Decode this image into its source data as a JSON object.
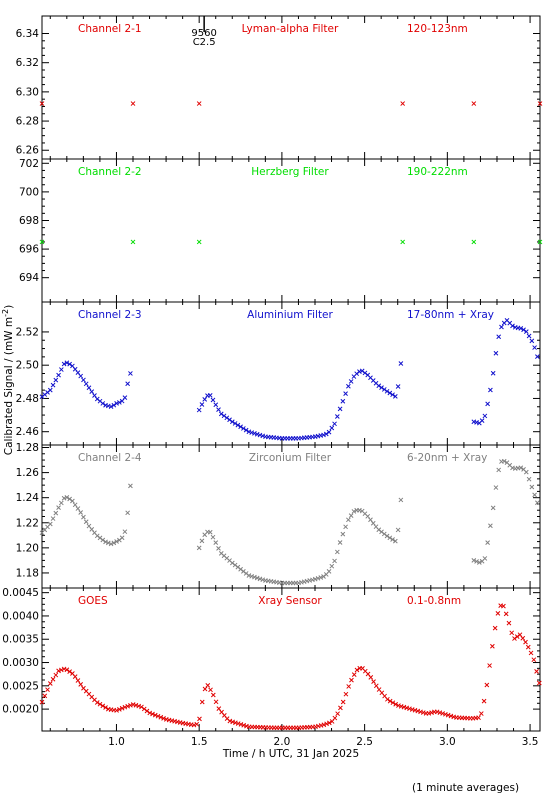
{
  "figure": {
    "ylabel": "Calibrated Signal / (mW m",
    "ylabel_sup": "-2",
    "ylabel_end": ")",
    "xlabel": "Time / h UTC, 31 Jan 2025",
    "footnote": "(1 minute averages)",
    "flare_marker": {
      "time": 1.53,
      "label_top": "9560",
      "label_bottom": "C2.5"
    },
    "x_ticks": [
      "1.0",
      "1.5",
      "2.0",
      "2.5",
      "3.0",
      "3.5"
    ]
  },
  "chart_data": [
    {
      "type": "scatter",
      "channel": "Channel 2-1",
      "filter": "Lyman-alpha Filter",
      "band": "120-123nm",
      "color": "#e00000",
      "xlim": [
        0.55,
        3.56
      ],
      "ylim": [
        6.254,
        6.352
      ],
      "yticks": [
        "6.26",
        "6.28",
        "6.30",
        "6.32",
        "6.34"
      ],
      "points": [
        [
          0.55,
          6.292
        ],
        [
          1.1,
          6.292
        ],
        [
          1.5,
          6.292
        ],
        [
          2.73,
          6.292
        ],
        [
          3.16,
          6.292
        ],
        [
          3.56,
          6.292
        ]
      ],
      "gaps": [
        [
          1.1,
          1.5
        ],
        [
          2.73,
          3.16
        ]
      ]
    },
    {
      "type": "scatter",
      "channel": "Channel 2-2",
      "filter": "Herzberg Filter",
      "band": "190-222nm",
      "color": "#00dd00",
      "xlim": [
        0.55,
        3.56
      ],
      "ylim": [
        692.3,
        702.3
      ],
      "yticks": [
        "694",
        "696",
        "698",
        "700",
        "702"
      ],
      "points": [
        [
          0.55,
          696.5
        ],
        [
          1.1,
          696.5
        ],
        [
          1.5,
          696.5
        ],
        [
          2.73,
          696.5
        ],
        [
          3.16,
          696.5
        ],
        [
          3.56,
          696.5
        ]
      ],
      "gaps": [
        [
          1.1,
          1.5
        ],
        [
          2.73,
          3.16
        ]
      ]
    },
    {
      "type": "scatter",
      "channel": "Channel 2-3",
      "filter": "Aluminium Filter",
      "band": "17-80nm + Xray",
      "color": "#1010cc",
      "xlim": [
        0.55,
        3.56
      ],
      "ylim": [
        2.452,
        2.538
      ],
      "yticks": [
        "2.46",
        "2.48",
        "2.50",
        "2.52"
      ],
      "points": [
        [
          0.55,
          2.481
        ],
        [
          0.6,
          2.485
        ],
        [
          0.65,
          2.494
        ],
        [
          0.69,
          2.502
        ],
        [
          0.73,
          2.5
        ],
        [
          0.78,
          2.494
        ],
        [
          0.83,
          2.487
        ],
        [
          0.88,
          2.48
        ],
        [
          0.93,
          2.476
        ],
        [
          0.97,
          2.475
        ],
        [
          1.0,
          2.477
        ],
        [
          1.03,
          2.478
        ],
        [
          1.05,
          2.48
        ],
        [
          1.07,
          2.49
        ],
        [
          1.09,
          2.497
        ],
        [
          1.5,
          2.473
        ],
        [
          1.53,
          2.479
        ],
        [
          1.56,
          2.483
        ],
        [
          1.59,
          2.478
        ],
        [
          1.63,
          2.471
        ],
        [
          1.7,
          2.466
        ],
        [
          1.8,
          2.46
        ],
        [
          1.9,
          2.457
        ],
        [
          2.0,
          2.456
        ],
        [
          2.1,
          2.456
        ],
        [
          2.2,
          2.457
        ],
        [
          2.25,
          2.458
        ],
        [
          2.28,
          2.459
        ],
        [
          2.32,
          2.465
        ],
        [
          2.36,
          2.476
        ],
        [
          2.4,
          2.487
        ],
        [
          2.44,
          2.494
        ],
        [
          2.48,
          2.497
        ],
        [
          2.52,
          2.494
        ],
        [
          2.58,
          2.488
        ],
        [
          2.64,
          2.484
        ],
        [
          2.69,
          2.481
        ],
        [
          2.71,
          2.491
        ],
        [
          2.72,
          2.502
        ],
        [
          3.16,
          2.466
        ],
        [
          3.2,
          2.465
        ],
        [
          3.23,
          2.47
        ],
        [
          3.25,
          2.48
        ],
        [
          3.27,
          2.49
        ],
        [
          3.29,
          2.505
        ],
        [
          3.31,
          2.517
        ],
        [
          3.33,
          2.524
        ],
        [
          3.36,
          2.527
        ],
        [
          3.4,
          2.523
        ],
        [
          3.45,
          2.522
        ],
        [
          3.48,
          2.52
        ],
        [
          3.52,
          2.513
        ],
        [
          3.56,
          2.5
        ]
      ]
    },
    {
      "type": "scatter",
      "channel": "Channel 2-4",
      "filter": "Zirconium Filter",
      "band": "6-20nm + Xray",
      "color": "#808080",
      "xlim": [
        0.55,
        3.56
      ],
      "ylim": [
        1.168,
        1.282
      ],
      "yticks": [
        "1.18",
        "1.20",
        "1.22",
        "1.24",
        "1.26",
        "1.28"
      ],
      "points": [
        [
          0.55,
          1.212
        ],
        [
          0.6,
          1.219
        ],
        [
          0.65,
          1.232
        ],
        [
          0.69,
          1.241
        ],
        [
          0.73,
          1.238
        ],
        [
          0.78,
          1.229
        ],
        [
          0.83,
          1.218
        ],
        [
          0.88,
          1.21
        ],
        [
          0.93,
          1.205
        ],
        [
          0.97,
          1.203
        ],
        [
          1.0,
          1.205
        ],
        [
          1.03,
          1.207
        ],
        [
          1.05,
          1.212
        ],
        [
          1.07,
          1.23
        ],
        [
          1.09,
          1.257
        ],
        [
          1.5,
          1.2
        ],
        [
          1.53,
          1.21
        ],
        [
          1.56,
          1.214
        ],
        [
          1.59,
          1.207
        ],
        [
          1.63,
          1.196
        ],
        [
          1.7,
          1.188
        ],
        [
          1.8,
          1.178
        ],
        [
          1.9,
          1.174
        ],
        [
          2.0,
          1.172
        ],
        [
          2.1,
          1.172
        ],
        [
          2.2,
          1.175
        ],
        [
          2.25,
          1.177
        ],
        [
          2.28,
          1.18
        ],
        [
          2.32,
          1.19
        ],
        [
          2.36,
          1.208
        ],
        [
          2.4,
          1.222
        ],
        [
          2.44,
          1.23
        ],
        [
          2.48,
          1.23
        ],
        [
          2.52,
          1.225
        ],
        [
          2.58,
          1.215
        ],
        [
          2.64,
          1.209
        ],
        [
          2.69,
          1.205
        ],
        [
          2.71,
          1.22
        ],
        [
          2.72,
          1.24
        ],
        [
          3.16,
          1.19
        ],
        [
          3.2,
          1.188
        ],
        [
          3.23,
          1.192
        ],
        [
          3.25,
          1.21
        ],
        [
          3.27,
          1.225
        ],
        [
          3.29,
          1.245
        ],
        [
          3.31,
          1.262
        ],
        [
          3.33,
          1.27
        ],
        [
          3.36,
          1.268
        ],
        [
          3.4,
          1.263
        ],
        [
          3.45,
          1.264
        ],
        [
          3.48,
          1.26
        ],
        [
          3.52,
          1.245
        ],
        [
          3.56,
          1.23
        ]
      ]
    },
    {
      "type": "scatter",
      "channel": "GOES",
      "filter": "Xray Sensor",
      "band": "0.1-0.8nm",
      "color": "#e00000",
      "xlim": [
        0.55,
        3.56
      ],
      "ylim": [
        0.00153,
        0.0046
      ],
      "yticks": [
        "0.0020",
        "0.0025",
        "0.0030",
        "0.0035",
        "0.0040",
        "0.0045"
      ],
      "points": [
        [
          0.55,
          0.00215
        ],
        [
          0.6,
          0.00255
        ],
        [
          0.65,
          0.00282
        ],
        [
          0.69,
          0.00287
        ],
        [
          0.74,
          0.00275
        ],
        [
          0.8,
          0.00245
        ],
        [
          0.88,
          0.00215
        ],
        [
          0.95,
          0.002
        ],
        [
          1.0,
          0.00197
        ],
        [
          1.05,
          0.00204
        ],
        [
          1.1,
          0.0021
        ],
        [
          1.15,
          0.00205
        ],
        [
          1.2,
          0.00192
        ],
        [
          1.3,
          0.00178
        ],
        [
          1.4,
          0.0017
        ],
        [
          1.48,
          0.00165
        ],
        [
          1.5,
          0.00175
        ],
        [
          1.53,
          0.0024
        ],
        [
          1.55,
          0.00252
        ],
        [
          1.58,
          0.00235
        ],
        [
          1.62,
          0.002
        ],
        [
          1.68,
          0.00175
        ],
        [
          1.8,
          0.00162
        ],
        [
          1.95,
          0.0016
        ],
        [
          2.1,
          0.0016
        ],
        [
          2.2,
          0.00162
        ],
        [
          2.25,
          0.00166
        ],
        [
          2.3,
          0.00172
        ],
        [
          2.33,
          0.00185
        ],
        [
          2.37,
          0.00215
        ],
        [
          2.41,
          0.00255
        ],
        [
          2.45,
          0.00283
        ],
        [
          2.48,
          0.0029
        ],
        [
          2.53,
          0.00272
        ],
        [
          2.58,
          0.00245
        ],
        [
          2.64,
          0.0022
        ],
        [
          2.7,
          0.00208
        ],
        [
          2.8,
          0.00198
        ],
        [
          2.88,
          0.0019
        ],
        [
          2.93,
          0.00195
        ],
        [
          2.96,
          0.00192
        ],
        [
          3.05,
          0.00182
        ],
        [
          3.15,
          0.0018
        ],
        [
          3.2,
          0.00182
        ],
        [
          3.23,
          0.0023
        ],
        [
          3.25,
          0.0028
        ],
        [
          3.27,
          0.0033
        ],
        [
          3.3,
          0.004
        ],
        [
          3.33,
          0.0043
        ],
        [
          3.36,
          0.004
        ],
        [
          3.4,
          0.0035
        ],
        [
          3.44,
          0.0036
        ],
        [
          3.48,
          0.0034
        ],
        [
          3.52,
          0.0031
        ],
        [
          3.56,
          0.0025
        ]
      ]
    }
  ]
}
